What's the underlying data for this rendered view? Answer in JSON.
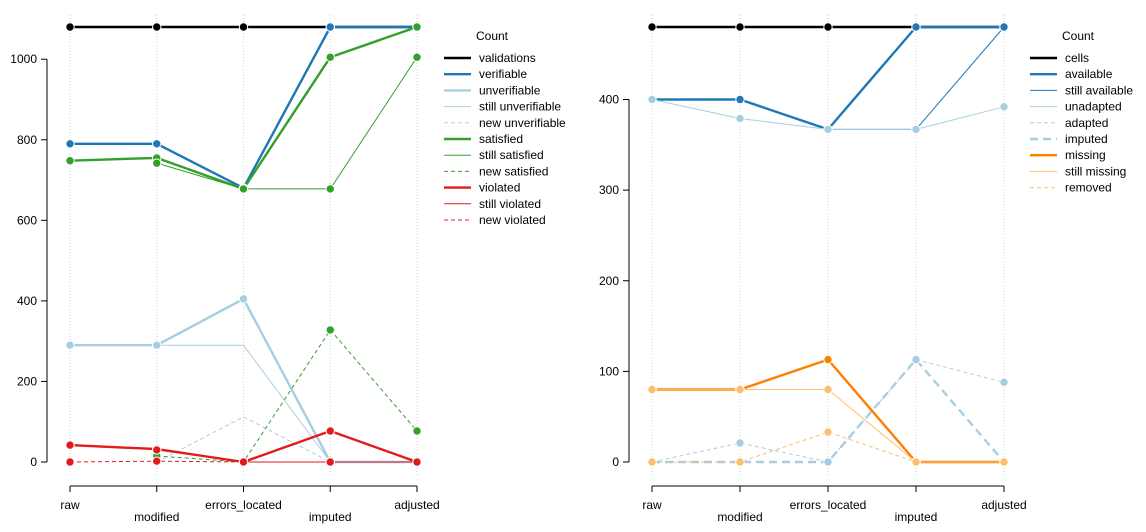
{
  "chart_data": [
    {
      "type": "line",
      "categories": [
        "raw",
        "modified",
        "errors_located",
        "imputed",
        "adjusted"
      ],
      "ylim": [
        0,
        1080
      ],
      "yticks": [
        0,
        200,
        400,
        600,
        800,
        1000
      ],
      "legend": {
        "title": "Count",
        "placement": "right"
      },
      "series": [
        {
          "name": "validations",
          "color": "#000000",
          "style": "thick",
          "markers": true,
          "values": [
            1080,
            1080,
            1080,
            1080,
            1080
          ]
        },
        {
          "name": "verifiable",
          "color": "#1f78b4",
          "style": "thick",
          "markers": true,
          "values": [
            790,
            790,
            680,
            1080,
            1080
          ]
        },
        {
          "name": "unverifiable",
          "color": "#a6cee3",
          "style": "thick",
          "markers": true,
          "values": [
            290,
            290,
            405,
            0,
            0
          ]
        },
        {
          "name": "still unverifiable",
          "color": "#a6cee3",
          "style": "thin",
          "markers": false,
          "values": [
            null,
            290,
            290,
            0,
            0
          ]
        },
        {
          "name": "new unverifiable",
          "color": "#a6cee3",
          "style": "dashed",
          "markers": false,
          "values": [
            null,
            0,
            112,
            0,
            0
          ]
        },
        {
          "name": "satisfied",
          "color": "#33a02c",
          "style": "thick",
          "markers": true,
          "values": [
            748,
            755,
            678,
            1005,
            1080
          ]
        },
        {
          "name": "still satisfied",
          "color": "#33a02c",
          "style": "thin",
          "markers": true,
          "values": [
            null,
            742,
            678,
            678,
            1005
          ]
        },
        {
          "name": "new satisfied",
          "color": "#33a02c",
          "style": "dashed",
          "markers": true,
          "values": [
            null,
            15,
            0,
            328,
            77
          ]
        },
        {
          "name": "violated",
          "color": "#e31a1c",
          "style": "thick",
          "markers": true,
          "values": [
            42,
            32,
            0,
            77,
            0
          ]
        },
        {
          "name": "still violated",
          "color": "#e31a1c",
          "style": "thin",
          "markers": true,
          "values": [
            null,
            30,
            0,
            0,
            0
          ]
        },
        {
          "name": "new violated",
          "color": "#e31a1c",
          "style": "dashed",
          "markers": true,
          "values": [
            0,
            2,
            0,
            0,
            0
          ]
        }
      ]
    },
    {
      "type": "line",
      "categories": [
        "raw",
        "modified",
        "errors_located",
        "imputed",
        "adjusted"
      ],
      "ylim": [
        0,
        480
      ],
      "yticks": [
        0,
        100,
        200,
        300,
        400
      ],
      "legend": {
        "title": "Count",
        "placement": "right"
      },
      "series": [
        {
          "name": "cells",
          "color": "#000000",
          "style": "thick",
          "markers": true,
          "values": [
            480,
            480,
            480,
            480,
            480
          ]
        },
        {
          "name": "available",
          "color": "#1f78b4",
          "style": "thick",
          "markers": true,
          "values": [
            400,
            400,
            367,
            480,
            480
          ]
        },
        {
          "name": "still available",
          "color": "#1f78b4",
          "style": "thin",
          "markers": false,
          "values": [
            null,
            400,
            367,
            367,
            480
          ]
        },
        {
          "name": "unadapted",
          "color": "#a6cee3",
          "style": "thin",
          "markers": true,
          "values": [
            400,
            379,
            367,
            367,
            392
          ]
        },
        {
          "name": "adapted",
          "color": "#a6cee3",
          "style": "dashed",
          "markers": true,
          "values": [
            0,
            21,
            0,
            113,
            88
          ]
        },
        {
          "name": "imputed",
          "color": "#a6cee3",
          "style": "dashed-thick",
          "markers": true,
          "values": [
            0,
            0,
            0,
            113,
            0
          ]
        },
        {
          "name": "missing",
          "color": "#ff7f00",
          "style": "thick",
          "markers": true,
          "values": [
            80,
            80,
            113,
            0,
            0
          ]
        },
        {
          "name": "still missing",
          "color": "#fdbf6f",
          "style": "thin",
          "markers": true,
          "values": [
            80,
            80,
            80,
            0,
            0
          ]
        },
        {
          "name": "removed",
          "color": "#fdbf6f",
          "style": "dashed",
          "markers": true,
          "values": [
            0,
            0,
            33,
            0,
            0
          ]
        }
      ]
    }
  ]
}
